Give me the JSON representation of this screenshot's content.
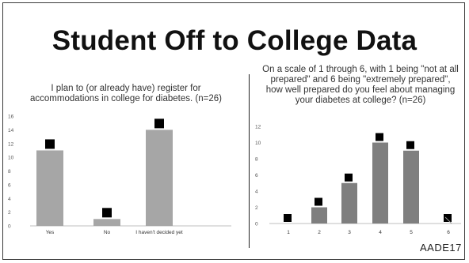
{
  "page": {
    "title": "Student Off to College Data",
    "logo_text": "AADE17"
  },
  "chart_data": [
    {
      "type": "bar",
      "title": "I plan to (or already have) register for accommodations in college for diabetes. (n=26)",
      "categories": [
        "Yes",
        "No",
        "I haven't decided yet"
      ],
      "values": [
        11,
        1,
        14
      ],
      "ylim": [
        0,
        16
      ],
      "yticks": [
        "0",
        "2",
        "4",
        "6",
        "8",
        "10",
        "12",
        "14",
        "16"
      ],
      "grid": false,
      "bar_color": "#a6a6a6",
      "marker_color": "#000000"
    },
    {
      "type": "bar",
      "title": "On a scale of 1 through 6, with 1 being \"not at all prepared\" and 6 being \"extremely prepared\", how well prepared do you feel about managing your diabetes at college? (n=26)",
      "categories": [
        "1",
        "2",
        "3",
        "4",
        "5",
        "6"
      ],
      "values": [
        0,
        2,
        5,
        10,
        9,
        0
      ],
      "ylim": [
        0,
        12
      ],
      "yticks": [
        "0",
        "2",
        "4",
        "6",
        "8",
        "10",
        "12"
      ],
      "grid": false,
      "bar_color": "#7f7f7f",
      "marker_color": "#000000"
    }
  ]
}
